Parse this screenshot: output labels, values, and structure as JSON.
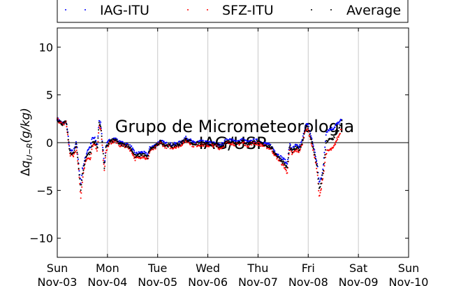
{
  "chart_data": {
    "type": "scatter",
    "ylabel": "Δq_{U−R}(g/kg)",
    "ylabel_parts": {
      "delta": "Δ",
      "q": "q",
      "sub": "U−R",
      "units": "(g/kg)"
    },
    "ylim": [
      -12,
      12
    ],
    "yticks": [
      -10,
      -5,
      0,
      5,
      10
    ],
    "xlim": [
      "2013-11-03",
      "2013-11-10"
    ],
    "xticks": [
      {
        "day": "Sun",
        "date": "Nov-03"
      },
      {
        "day": "Mon",
        "date": "Nov-04"
      },
      {
        "day": "Tue",
        "date": "Nov-05"
      },
      {
        "day": "Wed",
        "date": "Nov-06"
      },
      {
        "day": "Thu",
        "date": "Nov-07"
      },
      {
        "day": "Fri",
        "date": "Nov-08"
      },
      {
        "day": "Sat",
        "date": "Nov-09"
      },
      {
        "day": "Sun",
        "date": "Nov-10"
      }
    ],
    "grid": "vertical",
    "zero_line": true,
    "legend_placement": "top, outside plot",
    "watermark": {
      "line1": "Grupo de Micrometeorologia",
      "line2": "IAG/USP"
    },
    "series": [
      {
        "name": "IAG-ITU",
        "color": "#0000ff",
        "anchors": [
          [
            0,
            2.5
          ],
          [
            0.1,
            2.0
          ],
          [
            0.18,
            2.2
          ],
          [
            0.22,
            0.5
          ],
          [
            0.25,
            -0.8
          ],
          [
            0.32,
            -1.0
          ],
          [
            0.38,
            0.2
          ],
          [
            0.42,
            -2.0
          ],
          [
            0.47,
            -4.3
          ],
          [
            0.5,
            -2.8
          ],
          [
            0.55,
            -1.8
          ],
          [
            0.6,
            -0.8
          ],
          [
            0.66,
            -0.4
          ],
          [
            0.7,
            0.5
          ],
          [
            0.75,
            0.4
          ],
          [
            0.8,
            -0.3
          ],
          [
            0.83,
            2.2
          ],
          [
            0.87,
            2.0
          ],
          [
            0.9,
            0.0
          ],
          [
            0.94,
            -2.3
          ],
          [
            0.97,
            -0.3
          ],
          [
            1.05,
            0.3
          ],
          [
            1.15,
            0.4
          ],
          [
            1.25,
            0.0
          ],
          [
            1.4,
            -0.2
          ],
          [
            1.48,
            -0.5
          ],
          [
            1.55,
            -1.2
          ],
          [
            1.7,
            -1.0
          ],
          [
            1.8,
            -1.3
          ],
          [
            1.85,
            -0.5
          ],
          [
            1.95,
            -0.3
          ],
          [
            2.05,
            0.2
          ],
          [
            2.15,
            -0.1
          ],
          [
            2.3,
            -0.2
          ],
          [
            2.45,
            0.0
          ],
          [
            2.55,
            0.5
          ],
          [
            2.62,
            0.4
          ],
          [
            2.7,
            0.0
          ],
          [
            2.85,
            0.1
          ],
          [
            3.0,
            0.0
          ],
          [
            3.15,
            -0.1
          ],
          [
            3.25,
            -0.3
          ],
          [
            3.35,
            0.2
          ],
          [
            3.45,
            0.3
          ],
          [
            3.55,
            0.1
          ],
          [
            3.7,
            0.3
          ],
          [
            3.8,
            0.0
          ],
          [
            3.9,
            0.2
          ],
          [
            4.0,
            0.2
          ],
          [
            4.1,
            0.0
          ],
          [
            4.25,
            -0.3
          ],
          [
            4.35,
            -1.0
          ],
          [
            4.45,
            -1.5
          ],
          [
            4.52,
            -1.8
          ],
          [
            4.58,
            -2.2
          ],
          [
            4.63,
            -0.2
          ],
          [
            4.68,
            -0.7
          ],
          [
            4.75,
            -0.3
          ],
          [
            4.82,
            -0.5
          ],
          [
            4.88,
            0.2
          ],
          [
            4.95,
            1.9
          ],
          [
            5.0,
            1.8
          ],
          [
            5.05,
            0.8
          ],
          [
            5.12,
            -0.7
          ],
          [
            5.18,
            -2.3
          ],
          [
            5.22,
            -4.2
          ],
          [
            5.26,
            -3.6
          ],
          [
            5.3,
            -2.5
          ],
          [
            5.36,
            1.2
          ],
          [
            5.42,
            1.4
          ],
          [
            5.5,
            1.5
          ],
          [
            5.56,
            1.9
          ],
          [
            5.62,
            2.1
          ],
          [
            5.66,
            2.4
          ]
        ]
      },
      {
        "name": "SFZ-ITU",
        "color": "#ff0000",
        "anchors": [
          [
            0,
            2.4
          ],
          [
            0.1,
            1.9
          ],
          [
            0.18,
            2.1
          ],
          [
            0.22,
            0.2
          ],
          [
            0.25,
            -1.2
          ],
          [
            0.32,
            -1.4
          ],
          [
            0.38,
            -0.6
          ],
          [
            0.42,
            -2.5
          ],
          [
            0.47,
            -5.8
          ],
          [
            0.5,
            -4.0
          ],
          [
            0.55,
            -2.2
          ],
          [
            0.6,
            -1.5
          ],
          [
            0.66,
            -1.8
          ],
          [
            0.7,
            -0.4
          ],
          [
            0.75,
            -0.2
          ],
          [
            0.8,
            -0.8
          ],
          [
            0.83,
            1.7
          ],
          [
            0.87,
            1.5
          ],
          [
            0.9,
            -0.6
          ],
          [
            0.94,
            -3.2
          ],
          [
            0.97,
            -0.8
          ],
          [
            1.05,
            0.0
          ],
          [
            1.15,
            0.2
          ],
          [
            1.25,
            -0.3
          ],
          [
            1.4,
            -0.4
          ],
          [
            1.48,
            -0.9
          ],
          [
            1.55,
            -1.7
          ],
          [
            1.7,
            -1.4
          ],
          [
            1.8,
            -1.8
          ],
          [
            1.85,
            -0.8
          ],
          [
            1.95,
            -0.6
          ],
          [
            2.05,
            0.0
          ],
          [
            2.15,
            -0.4
          ],
          [
            2.3,
            -0.5
          ],
          [
            2.45,
            -0.3
          ],
          [
            2.55,
            0.2
          ],
          [
            2.62,
            0.1
          ],
          [
            2.7,
            -0.3
          ],
          [
            2.85,
            -0.2
          ],
          [
            3.0,
            -0.3
          ],
          [
            3.15,
            -0.3
          ],
          [
            3.25,
            -0.6
          ],
          [
            3.35,
            -0.1
          ],
          [
            3.45,
            0.0
          ],
          [
            3.55,
            -0.2
          ],
          [
            3.7,
            0.0
          ],
          [
            3.8,
            -0.3
          ],
          [
            3.9,
            0.0
          ],
          [
            4.0,
            -0.1
          ],
          [
            4.1,
            -0.3
          ],
          [
            4.25,
            -0.6
          ],
          [
            4.35,
            -1.4
          ],
          [
            4.45,
            -2.0
          ],
          [
            4.52,
            -2.5
          ],
          [
            4.58,
            -3.2
          ],
          [
            4.63,
            -0.6
          ],
          [
            4.68,
            -1.2
          ],
          [
            4.75,
            -0.8
          ],
          [
            4.82,
            -0.9
          ],
          [
            4.88,
            -0.2
          ],
          [
            4.95,
            1.5
          ],
          [
            5.0,
            1.3
          ],
          [
            5.05,
            0.3
          ],
          [
            5.12,
            -1.3
          ],
          [
            5.18,
            -3.0
          ],
          [
            5.22,
            -5.8
          ],
          [
            5.26,
            -4.8
          ],
          [
            5.3,
            -3.3
          ],
          [
            5.36,
            -1.0
          ],
          [
            5.42,
            -0.8
          ],
          [
            5.5,
            -0.6
          ],
          [
            5.56,
            0.2
          ],
          [
            5.62,
            0.8
          ],
          [
            5.66,
            1.6
          ]
        ]
      },
      {
        "name": "Average",
        "color": "#000000",
        "anchors": [
          [
            0,
            2.45
          ],
          [
            0.1,
            1.95
          ],
          [
            0.18,
            2.15
          ],
          [
            0.22,
            0.35
          ],
          [
            0.25,
            -1.0
          ],
          [
            0.32,
            -1.2
          ],
          [
            0.38,
            -0.2
          ],
          [
            0.42,
            -2.25
          ],
          [
            0.47,
            -5.0
          ],
          [
            0.5,
            -3.4
          ],
          [
            0.55,
            -2.0
          ],
          [
            0.6,
            -1.15
          ],
          [
            0.66,
            -1.1
          ],
          [
            0.7,
            0.05
          ],
          [
            0.75,
            0.1
          ],
          [
            0.8,
            -0.55
          ],
          [
            0.83,
            1.95
          ],
          [
            0.87,
            1.75
          ],
          [
            0.9,
            -0.3
          ],
          [
            0.94,
            -2.75
          ],
          [
            0.97,
            -0.55
          ],
          [
            1.05,
            0.15
          ],
          [
            1.15,
            0.3
          ],
          [
            1.25,
            -0.15
          ],
          [
            1.4,
            -0.3
          ],
          [
            1.48,
            -0.7
          ],
          [
            1.55,
            -1.45
          ],
          [
            1.7,
            -1.2
          ],
          [
            1.8,
            -1.55
          ],
          [
            1.85,
            -0.65
          ],
          [
            1.95,
            -0.45
          ],
          [
            2.05,
            0.1
          ],
          [
            2.15,
            -0.25
          ],
          [
            2.3,
            -0.35
          ],
          [
            2.45,
            -0.15
          ],
          [
            2.55,
            0.35
          ],
          [
            2.62,
            0.25
          ],
          [
            2.7,
            -0.15
          ],
          [
            2.85,
            -0.05
          ],
          [
            3.0,
            -0.15
          ],
          [
            3.15,
            -0.2
          ],
          [
            3.25,
            -0.45
          ],
          [
            3.35,
            0.05
          ],
          [
            3.45,
            0.15
          ],
          [
            3.55,
            -0.05
          ],
          [
            3.7,
            0.15
          ],
          [
            3.8,
            -0.15
          ],
          [
            3.9,
            0.1
          ],
          [
            4.0,
            0.05
          ],
          [
            4.1,
            -0.15
          ],
          [
            4.25,
            -0.45
          ],
          [
            4.35,
            -1.2
          ],
          [
            4.45,
            -1.75
          ],
          [
            4.52,
            -2.15
          ],
          [
            4.58,
            -2.7
          ],
          [
            4.63,
            -0.4
          ],
          [
            4.68,
            -0.95
          ],
          [
            4.75,
            -0.55
          ],
          [
            4.82,
            -0.7
          ],
          [
            4.88,
            0.0
          ],
          [
            4.95,
            1.7
          ],
          [
            5.0,
            1.55
          ],
          [
            5.05,
            0.55
          ],
          [
            5.12,
            -1.0
          ],
          [
            5.18,
            -2.65
          ],
          [
            5.22,
            -5.0
          ],
          [
            5.26,
            -4.2
          ],
          [
            5.3,
            -2.9
          ],
          [
            5.36,
            0.1
          ],
          [
            5.42,
            0.3
          ],
          [
            5.5,
            0.45
          ],
          [
            5.56,
            1.05
          ],
          [
            5.62,
            1.45
          ],
          [
            5.66,
            2.0
          ]
        ]
      }
    ]
  }
}
